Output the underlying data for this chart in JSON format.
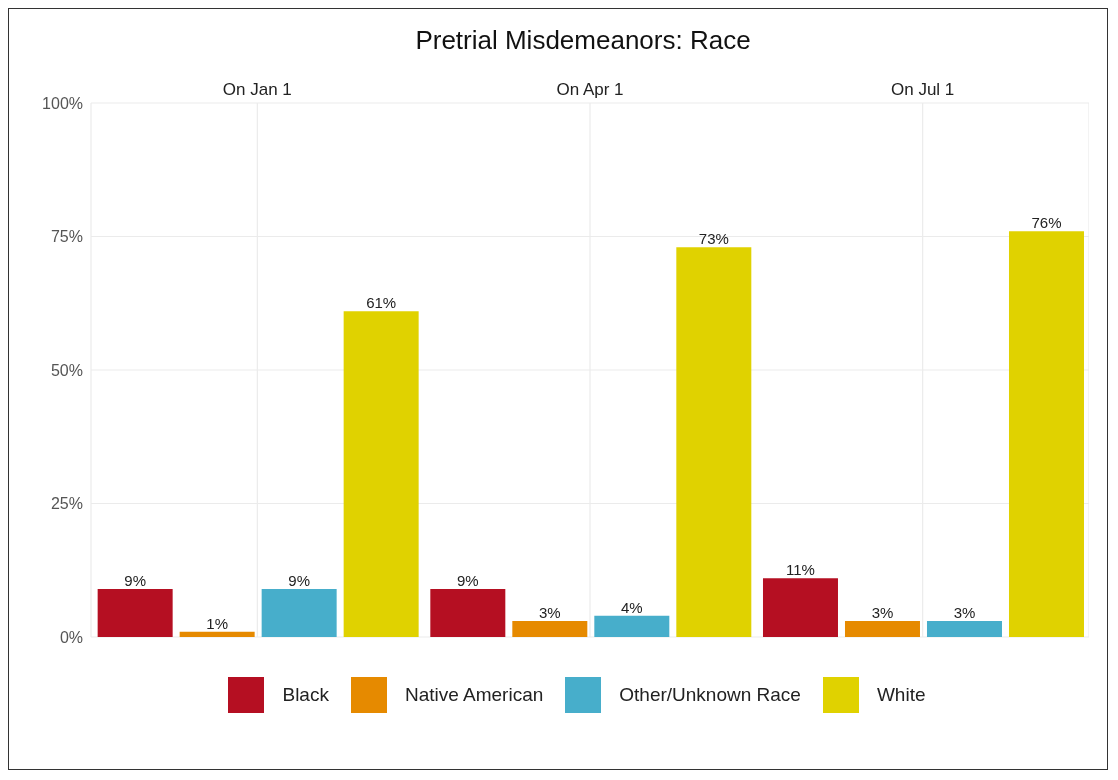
{
  "chart_data": {
    "type": "bar",
    "title": "Pretrial Misdemeanors: Race",
    "categories": [
      "On Jan 1",
      "On Apr 1",
      "On Jul 1"
    ],
    "ylim": [
      0,
      100
    ],
    "yticks": [
      {
        "value": 0,
        "label": "0%"
      },
      {
        "value": 25,
        "label": "25%"
      },
      {
        "value": 50,
        "label": "50%"
      },
      {
        "value": 75,
        "label": "75%"
      },
      {
        "value": 100,
        "label": "100%"
      }
    ],
    "grid": true,
    "legend": "bottom",
    "series": [
      {
        "name": "Black",
        "color": "#b50f22",
        "values": [
          9,
          9,
          11
        ],
        "value_labels": [
          "9%",
          "9%",
          "11%"
        ]
      },
      {
        "name": "Native American",
        "color": "#e68a00",
        "values": [
          1,
          3,
          3
        ],
        "value_labels": [
          "1%",
          "3%",
          "3%"
        ]
      },
      {
        "name": "Other/Unknown Race",
        "color": "#47aecb",
        "values": [
          9,
          4,
          3
        ],
        "value_labels": [
          "9%",
          "4%",
          "3%"
        ]
      },
      {
        "name": "White",
        "color": "#e0d200",
        "values": [
          61,
          73,
          76
        ],
        "value_labels": [
          "61%",
          "73%",
          "76%"
        ]
      }
    ]
  }
}
